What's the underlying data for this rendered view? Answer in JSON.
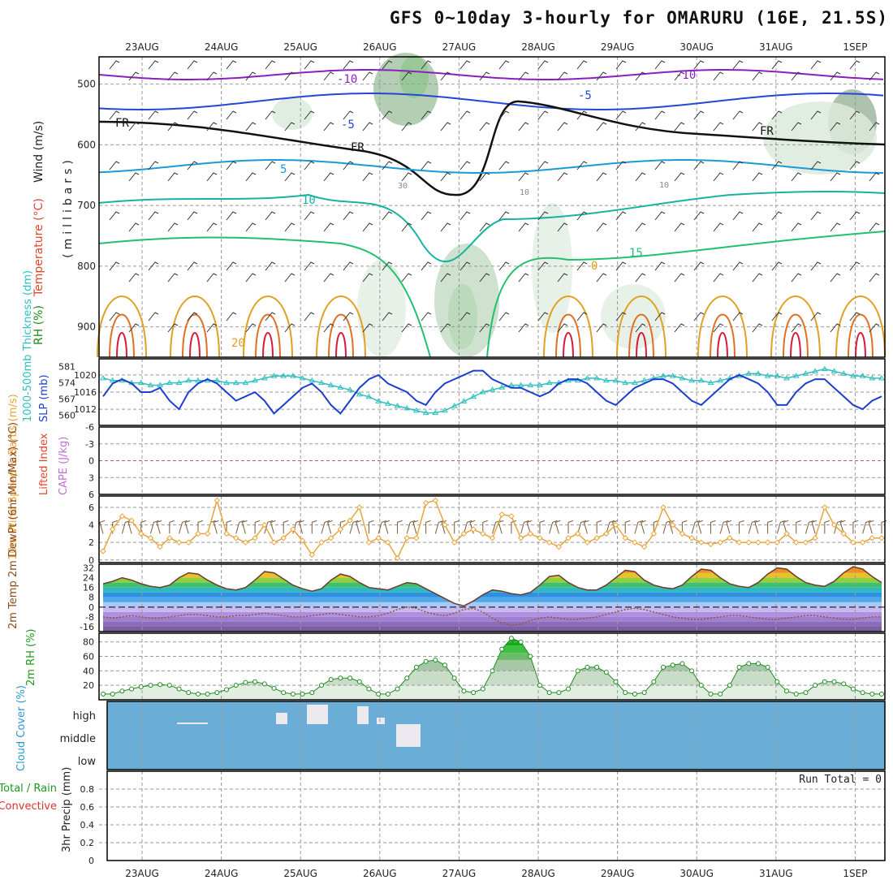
{
  "title": "GFS 0~10day 3-hourly for OMARURU (16E, 21.5S)",
  "dates": [
    "23AUG",
    "24AUG",
    "25AUG",
    "26AUG",
    "27AUG",
    "28AUG",
    "29AUG",
    "30AUG",
    "31AUG",
    "1SEP"
  ],
  "chart_data": [
    {
      "id": "upper-air",
      "type": "contour",
      "ylabel_parts": [
        {
          "text": "RH (%)",
          "color": "#1b8f1b"
        },
        {
          "text": "Temperature (°C)",
          "color": "#e0472a"
        },
        {
          "text": "Wind (m/s)",
          "color": "#222222"
        }
      ],
      "yaxis_title": "(millibars)",
      "yticks": [
        500,
        600,
        700,
        800,
        900
      ],
      "ylim": [
        455,
        950
      ],
      "contour_labels": [
        "-10",
        "-10",
        "-5",
        "-5",
        "FR",
        "FR",
        "FR",
        "5",
        "10",
        "15",
        "0",
        "20",
        "30",
        "10",
        "10"
      ],
      "colors": {
        "minus10": "#8a1fc1",
        "minus5": "#2347d6",
        "zero": "#111111",
        "p5": "#1a9ad6",
        "p10": "#14b4a0",
        "p15": "#20c06e",
        "p20": "#e0a020",
        "p25": "#e07020",
        "p30": "#d81a3c"
      }
    },
    {
      "id": "slp-thickness",
      "type": "line",
      "left_label": "1000-500mb Thickness (dm)",
      "right_label": "SLP (mb)",
      "thickness_ticks": [
        560,
        567,
        574,
        581
      ],
      "slp_ticks": [
        1012,
        1016,
        1020
      ],
      "series": [
        {
          "name": "SLP",
          "color": "#1c3fd0",
          "values": [
            1015,
            1018,
            1019,
            1018,
            1016,
            1016,
            1017,
            1014,
            1012,
            1016,
            1018,
            1019,
            1018,
            1016,
            1014,
            1015,
            1016,
            1014,
            1011,
            1013,
            1015,
            1017,
            1018,
            1016,
            1013,
            1011,
            1014,
            1017,
            1019,
            1020,
            1018,
            1017,
            1016,
            1014,
            1013,
            1016,
            1018,
            1019,
            1020,
            1021,
            1021,
            1019,
            1018,
            1017,
            1017,
            1016,
            1015,
            1016,
            1018,
            1019,
            1019,
            1018,
            1016,
            1014,
            1013,
            1015,
            1017,
            1018,
            1019,
            1019,
            1018,
            1016,
            1014,
            1013,
            1015,
            1017,
            1019,
            1020,
            1019,
            1018,
            1016,
            1013,
            1013,
            1016,
            1018,
            1019,
            1019,
            1017,
            1015,
            1013,
            1012,
            1014,
            1015
          ]
        },
        {
          "name": "Thickness",
          "color": "#2fbfbf",
          "values": [
            576,
            575,
            575,
            574,
            574,
            573,
            573,
            574,
            574,
            575,
            575,
            575,
            575,
            574,
            574,
            574,
            575,
            576,
            577,
            577,
            577,
            576,
            575,
            574,
            573,
            572,
            571,
            569,
            568,
            566,
            565,
            564,
            563,
            562,
            561,
            561,
            562,
            564,
            566,
            568,
            570,
            571,
            572,
            573,
            573,
            573,
            573,
            574,
            574,
            575,
            575,
            576,
            576,
            575,
            575,
            574,
            574,
            575,
            576,
            577,
            577,
            576,
            575,
            575,
            574,
            575,
            576,
            577,
            578,
            578,
            577,
            577,
            576,
            577,
            578,
            579,
            580,
            579,
            578,
            577,
            577,
            576,
            576
          ]
        }
      ]
    },
    {
      "id": "cape-li",
      "type": "line",
      "left_label": "Lifted Index",
      "right_label": "CAPE (J/kg)",
      "yticks": [
        "-6",
        "-3",
        "0",
        "3",
        "6"
      ]
    },
    {
      "id": "wind10m",
      "type": "line",
      "ylabel": "10m Wind Speed & Barbs (m/s)",
      "yticks": [
        0,
        2,
        4,
        6
      ],
      "ylim": [
        -0.3,
        7.3
      ],
      "series": [
        {
          "name": "Wind Speed",
          "color": "#e8a43a",
          "values": [
            1.0,
            3.5,
            5.0,
            4.5,
            3.0,
            2.5,
            1.5,
            2.5,
            2.0,
            2.0,
            3.0,
            3.0,
            6.8,
            3.0,
            2.5,
            2.0,
            2.5,
            4.0,
            2.0,
            2.5,
            3.5,
            2.2,
            0.6,
            2.0,
            2.5,
            3.5,
            4.5,
            6.0,
            2.0,
            2.5,
            2.0,
            0.2,
            2.5,
            2.5,
            6.5,
            6.8,
            4.0,
            2.0,
            3.0,
            3.5,
            3.0,
            2.5,
            5.2,
            5.0,
            2.5,
            3.0,
            2.5,
            2.0,
            1.5,
            2.5,
            3.0,
            2.0,
            2.5,
            3.0,
            4.0,
            2.5,
            2.0,
            1.5,
            3.0,
            6.0,
            4.0,
            3.0,
            2.5,
            2.0,
            1.8,
            2.0,
            2.5,
            2.0,
            2.0,
            2.0,
            2.0,
            2.0,
            3.0,
            2.0,
            2.0,
            2.5,
            6.0,
            4.0,
            3.0,
            2.0,
            2.0,
            2.5,
            2.5
          ]
        }
      ]
    },
    {
      "id": "temp2m",
      "type": "area",
      "ylabel": "2m Temp 2m DewPt (6hr Min/Max) (°C)",
      "yticks": [
        32,
        24,
        16,
        8,
        0,
        -8,
        -16
      ],
      "ylim": [
        -20,
        35
      ],
      "series": [
        {
          "name": "Temp",
          "color": "#6d3b2a",
          "values": [
            19,
            21,
            24,
            22,
            19,
            17,
            16,
            18,
            24,
            28,
            27,
            22,
            18,
            15,
            14,
            16,
            22,
            29,
            28,
            23,
            18,
            15,
            13,
            15,
            22,
            27,
            25,
            20,
            16,
            15,
            14,
            17,
            20,
            19,
            15,
            11,
            7,
            3,
            1,
            5,
            10,
            14,
            13,
            11,
            10,
            12,
            18,
            25,
            26,
            20,
            16,
            14,
            14,
            18,
            24,
            30,
            29,
            22,
            18,
            16,
            15,
            18,
            25,
            31,
            30,
            24,
            19,
            17,
            16,
            20,
            27,
            32,
            31,
            25,
            20,
            18,
            17,
            21,
            28,
            33,
            31,
            25,
            20
          ]
        },
        {
          "name": "DewPt",
          "color": "#8b5a3c",
          "values": [
            -8,
            -9,
            -8,
            -7,
            -8,
            -9,
            -9,
            -8,
            -7,
            -6,
            -6,
            -7,
            -8,
            -8,
            -7,
            -7,
            -6,
            -5,
            -6,
            -7,
            -8,
            -8,
            -7,
            -6,
            -5,
            -6,
            -7,
            -8,
            -8,
            -7,
            -5,
            -2,
            0,
            -1,
            -4,
            -6,
            -7,
            -5,
            -2,
            -1,
            -4,
            -9,
            -13,
            -15,
            -14,
            -11,
            -9,
            -8,
            -9,
            -10,
            -10,
            -9,
            -8,
            -6,
            -4,
            -2,
            -1,
            -2,
            -4,
            -6,
            -8,
            -9,
            -10,
            -10,
            -9,
            -8,
            -7,
            -7,
            -8,
            -9,
            -10,
            -10,
            -9,
            -8,
            -7,
            -7,
            -8,
            -9,
            -10,
            -10,
            -9,
            -8,
            -8
          ]
        }
      ]
    },
    {
      "id": "rh2m",
      "type": "area",
      "ylabel": "2m RH (%)",
      "yticks": [
        20,
        40,
        60,
        80
      ],
      "ylim": [
        0,
        92
      ],
      "series": [
        {
          "name": "RH",
          "color": "#1f8a1f",
          "values": [
            8,
            8,
            12,
            15,
            18,
            20,
            21,
            20,
            15,
            10,
            8,
            8,
            10,
            14,
            20,
            24,
            25,
            22,
            16,
            10,
            8,
            8,
            10,
            20,
            28,
            30,
            30,
            25,
            15,
            8,
            8,
            15,
            30,
            45,
            53,
            55,
            48,
            30,
            12,
            10,
            15,
            40,
            70,
            85,
            80,
            60,
            20,
            10,
            10,
            15,
            40,
            45,
            45,
            38,
            25,
            10,
            8,
            10,
            25,
            45,
            48,
            50,
            40,
            20,
            8,
            8,
            20,
            45,
            50,
            50,
            45,
            25,
            12,
            8,
            10,
            20,
            25,
            25,
            22,
            15,
            10,
            8,
            8
          ]
        }
      ]
    },
    {
      "id": "cloud",
      "type": "bar",
      "ylabel": "Cloud Cover (%)",
      "levels": [
        "high",
        "middle",
        "low"
      ]
    },
    {
      "id": "precip",
      "type": "bar",
      "ylabel": "3hr Precip (mm)",
      "left_label_total": "Total / Rain",
      "left_label_conv": "Convective",
      "run_total": "Run Total = 0",
      "yticks": [
        "0",
        "0.2",
        "0.4",
        "0.6",
        "0.8"
      ],
      "ylim": [
        0,
        1.0
      ]
    }
  ]
}
